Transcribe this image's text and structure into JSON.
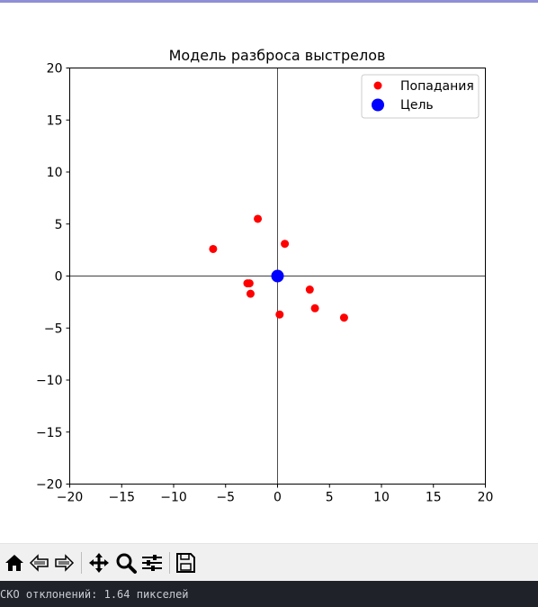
{
  "chart_data": {
    "type": "scatter",
    "title": "Модель разброса выстрелов",
    "xlabel": "",
    "ylabel": "",
    "xlim": [
      -20,
      20
    ],
    "ylim": [
      -20,
      20
    ],
    "xticks": [
      -20,
      -15,
      -10,
      -5,
      0,
      5,
      10,
      15,
      20
    ],
    "yticks": [
      -20,
      -15,
      -10,
      -5,
      0,
      5,
      10,
      15,
      20
    ],
    "tick_labels": [
      "−20",
      "−15",
      "−10",
      "−5",
      "0",
      "5",
      "10",
      "15",
      "20"
    ],
    "grid": false,
    "axis_lines": true,
    "legend_position": "top-right",
    "series": [
      {
        "name": "Попадания",
        "color": "#ff0000",
        "points": [
          {
            "x": -1.9,
            "y": 5.5
          },
          {
            "x": 0.7,
            "y": 3.1
          },
          {
            "x": -6.2,
            "y": 2.6
          },
          {
            "x": -2.9,
            "y": -0.7
          },
          {
            "x": -2.7,
            "y": -0.7
          },
          {
            "x": -2.6,
            "y": -1.7
          },
          {
            "x": 3.1,
            "y": -1.3
          },
          {
            "x": 3.6,
            "y": -3.1
          },
          {
            "x": 0.2,
            "y": -3.7
          },
          {
            "x": 6.4,
            "y": -4.0
          }
        ]
      },
      {
        "name": "Цель",
        "color": "#0000ff",
        "points": [
          {
            "x": 0,
            "y": 0
          }
        ]
      }
    ]
  },
  "toolbar": {
    "buttons": [
      "home-icon",
      "back-icon",
      "forward-icon",
      "pan-icon",
      "zoom-icon",
      "configure-icon",
      "save-icon"
    ]
  },
  "console": {
    "line": "СКО отклонений: 1.64 пикселей"
  }
}
